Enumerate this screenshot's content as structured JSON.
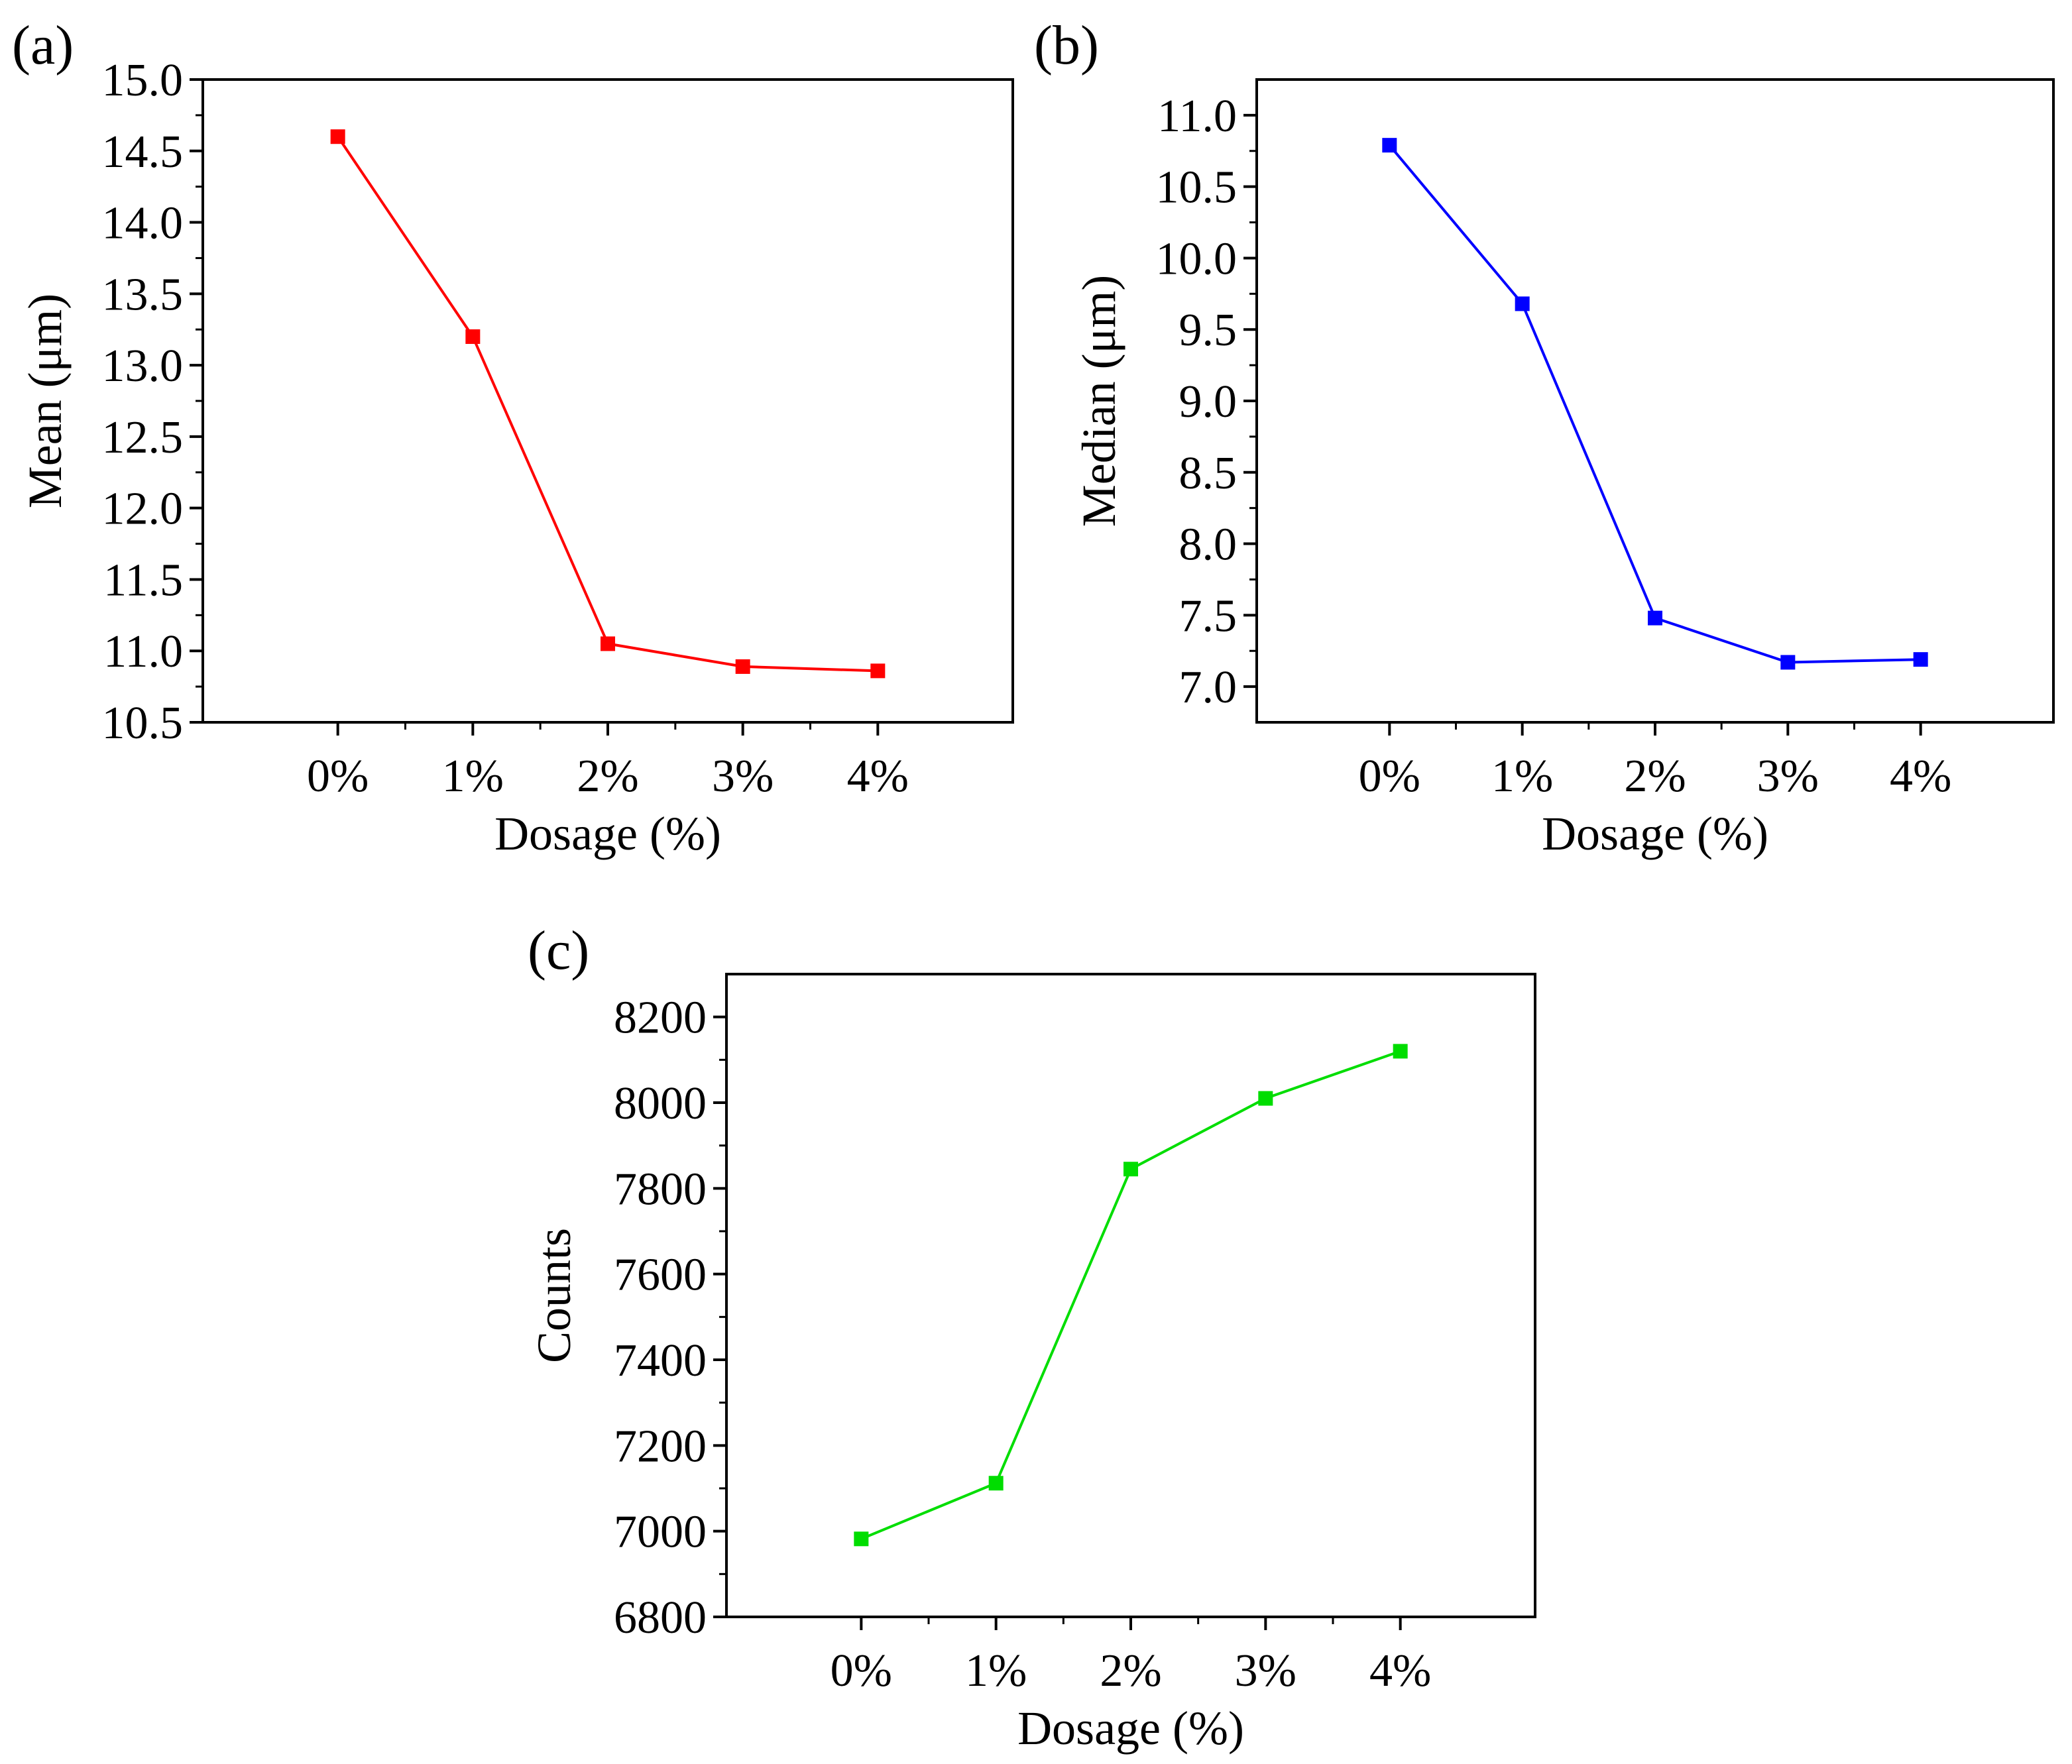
{
  "figure": {
    "panels": [
      "(a)",
      "(b)",
      "(c)"
    ]
  },
  "chart_data": [
    {
      "panel": "(a)",
      "type": "line",
      "xlabel": "Dosage (%)",
      "ylabel": "Mean (μm)",
      "categories": [
        "0%",
        "1%",
        "2%",
        "3%",
        "4%"
      ],
      "values": [
        14.6,
        13.2,
        11.05,
        10.89,
        10.86
      ],
      "ylim": [
        10.5,
        15.0
      ],
      "yticks": [
        "10.5",
        "11.0",
        "11.5",
        "12.0",
        "12.5",
        "13.0",
        "13.5",
        "14.0",
        "14.5",
        "15.0"
      ],
      "color": "#ff0000",
      "marker": "square",
      "grid": false
    },
    {
      "panel": "(b)",
      "type": "line",
      "xlabel": "Dosage (%)",
      "ylabel": "Median (μm)",
      "categories": [
        "0%",
        "1%",
        "2%",
        "3%",
        "4%"
      ],
      "values": [
        10.79,
        9.68,
        7.48,
        7.17,
        7.19
      ],
      "ylim": [
        6.75,
        11.25
      ],
      "yticks": [
        "7.0",
        "7.5",
        "8.0",
        "8.5",
        "9.0",
        "9.5",
        "10.0",
        "10.5",
        "11.0"
      ],
      "color": "#0000ff",
      "marker": "square",
      "grid": false
    },
    {
      "panel": "(c)",
      "type": "line",
      "xlabel": "Dosage (%)",
      "ylabel": "Counts",
      "categories": [
        "0%",
        "1%",
        "2%",
        "3%",
        "4%"
      ],
      "values": [
        6982,
        7112,
        7845,
        8010,
        8120
      ],
      "ylim": [
        6800,
        8300
      ],
      "yticks": [
        "6800",
        "7000",
        "7200",
        "7400",
        "7600",
        "7800",
        "8000",
        "8200"
      ],
      "color": "#00dd00",
      "marker": "square",
      "grid": false
    }
  ]
}
